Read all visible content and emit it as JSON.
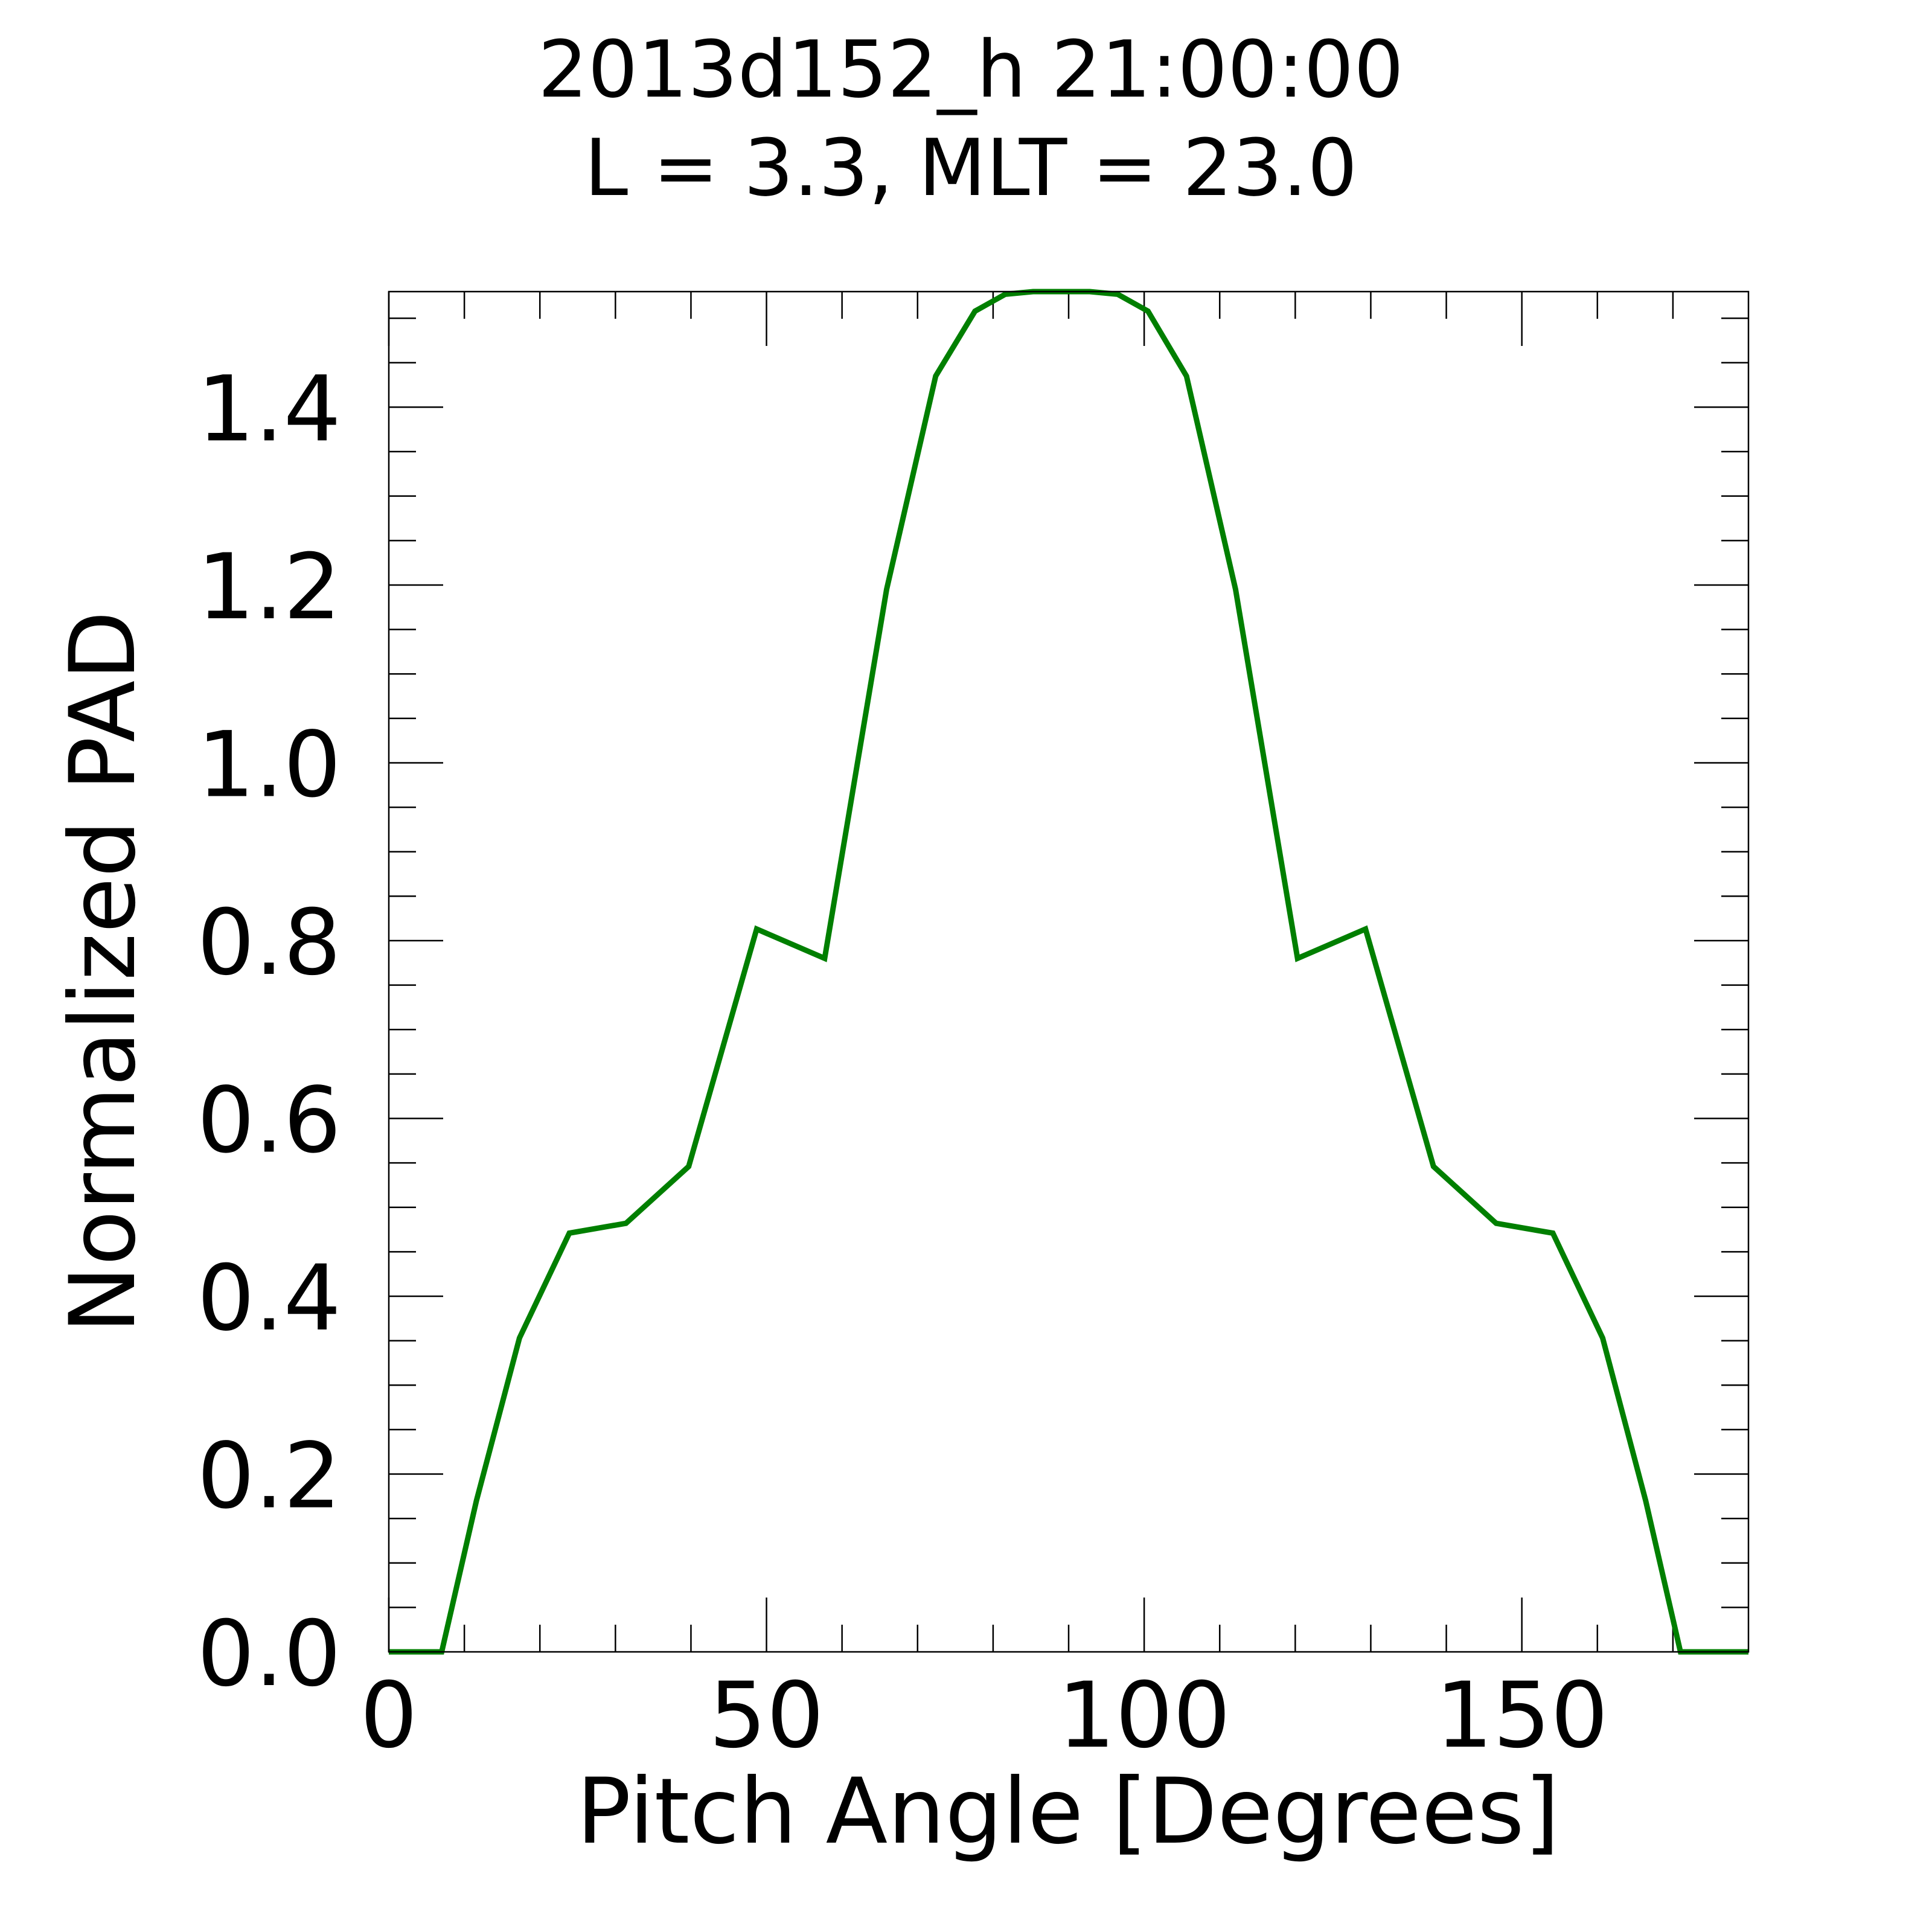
{
  "chart_data": {
    "type": "line",
    "title": "2013d152_h  21:00:00",
    "subtitle": "L = 3.3, MLT = 23.0",
    "xlabel": "Pitch Angle [Degrees]",
    "ylabel": "Normalized PAD",
    "xlim": [
      0,
      180
    ],
    "ylim": [
      0,
      1.53
    ],
    "x_ticks": [
      0,
      50,
      100,
      150
    ],
    "x_tick_labels": [
      "0",
      "50",
      "100",
      "150"
    ],
    "y_ticks": [
      0.0,
      0.2,
      0.4,
      0.6,
      0.8,
      1.0,
      1.2,
      1.4
    ],
    "y_tick_labels": [
      "0.0",
      "0.2",
      "0.4",
      "0.6",
      "0.8",
      "1.0",
      "1.2",
      "1.4"
    ],
    "x_minor_step": 10,
    "y_minor_step": 0.05,
    "grid": false,
    "series": [
      {
        "color": "#007f00",
        "x": [
          0,
          7,
          11.6,
          17.3,
          23.9,
          31.4,
          39.7,
          48.7,
          57.7,
          65.9,
          72.4,
          77.6,
          81.6,
          85.3,
          89.0,
          92.8,
          96.5,
          100.5,
          105.6,
          112.1,
          120.3,
          129.3,
          138.3,
          146.6,
          154.1,
          160.7,
          166.4,
          171,
          180
        ],
        "y": [
          0.0,
          0.0,
          0.17,
          0.353,
          0.471,
          0.482,
          0.546,
          0.813,
          0.78,
          1.195,
          1.435,
          1.508,
          1.527,
          1.53,
          1.53,
          1.53,
          1.527,
          1.508,
          1.435,
          1.195,
          0.78,
          0.813,
          0.546,
          0.482,
          0.471,
          0.353,
          0.17,
          0.0,
          0.0
        ]
      }
    ]
  }
}
